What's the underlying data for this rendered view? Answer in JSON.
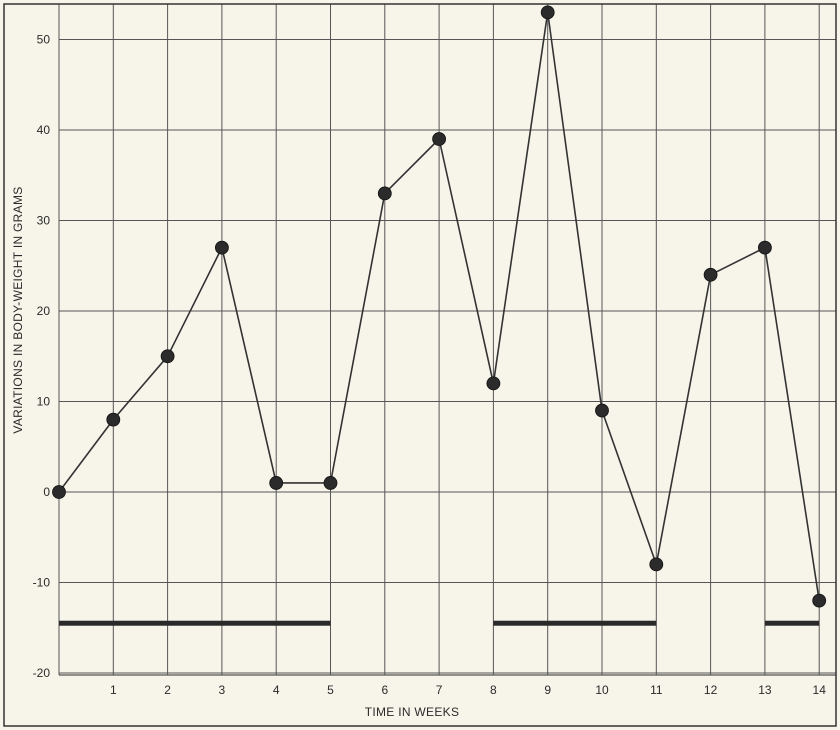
{
  "chart_data": {
    "type": "line",
    "xlabel": "TIME IN WEEKS",
    "ylabel": "VARIATIONS IN BODY-WEIGHT IN GRAMS",
    "xlim": [
      0,
      14
    ],
    "ylim": [
      -20,
      50
    ],
    "x_ticks": [
      1,
      2,
      3,
      4,
      5,
      6,
      7,
      8,
      9,
      10,
      11,
      12,
      13,
      14
    ],
    "y_ticks": [
      -20,
      -10,
      0,
      10,
      20,
      30,
      40,
      50
    ],
    "grid": true,
    "series": [
      {
        "x": [
          0,
          1,
          2,
          3,
          4,
          5,
          6,
          7,
          8,
          9,
          10,
          11,
          12,
          13,
          14
        ],
        "values": [
          0,
          8,
          15,
          27,
          1,
          1,
          33,
          39,
          12,
          53,
          9,
          -8,
          24,
          27,
          -12
        ]
      }
    ],
    "period_bars": [
      {
        "start": 0,
        "end": 5,
        "y": -14.5
      },
      {
        "start": 8,
        "end": 11,
        "y": -14.5
      },
      {
        "start": 13,
        "end": 14,
        "y": -14.5
      }
    ],
    "colors": {
      "background": "#f7f5ea",
      "grid": "#555555",
      "line": "#333333",
      "marker": "#2b2b2b",
      "bar": "#2a2a2a"
    }
  }
}
